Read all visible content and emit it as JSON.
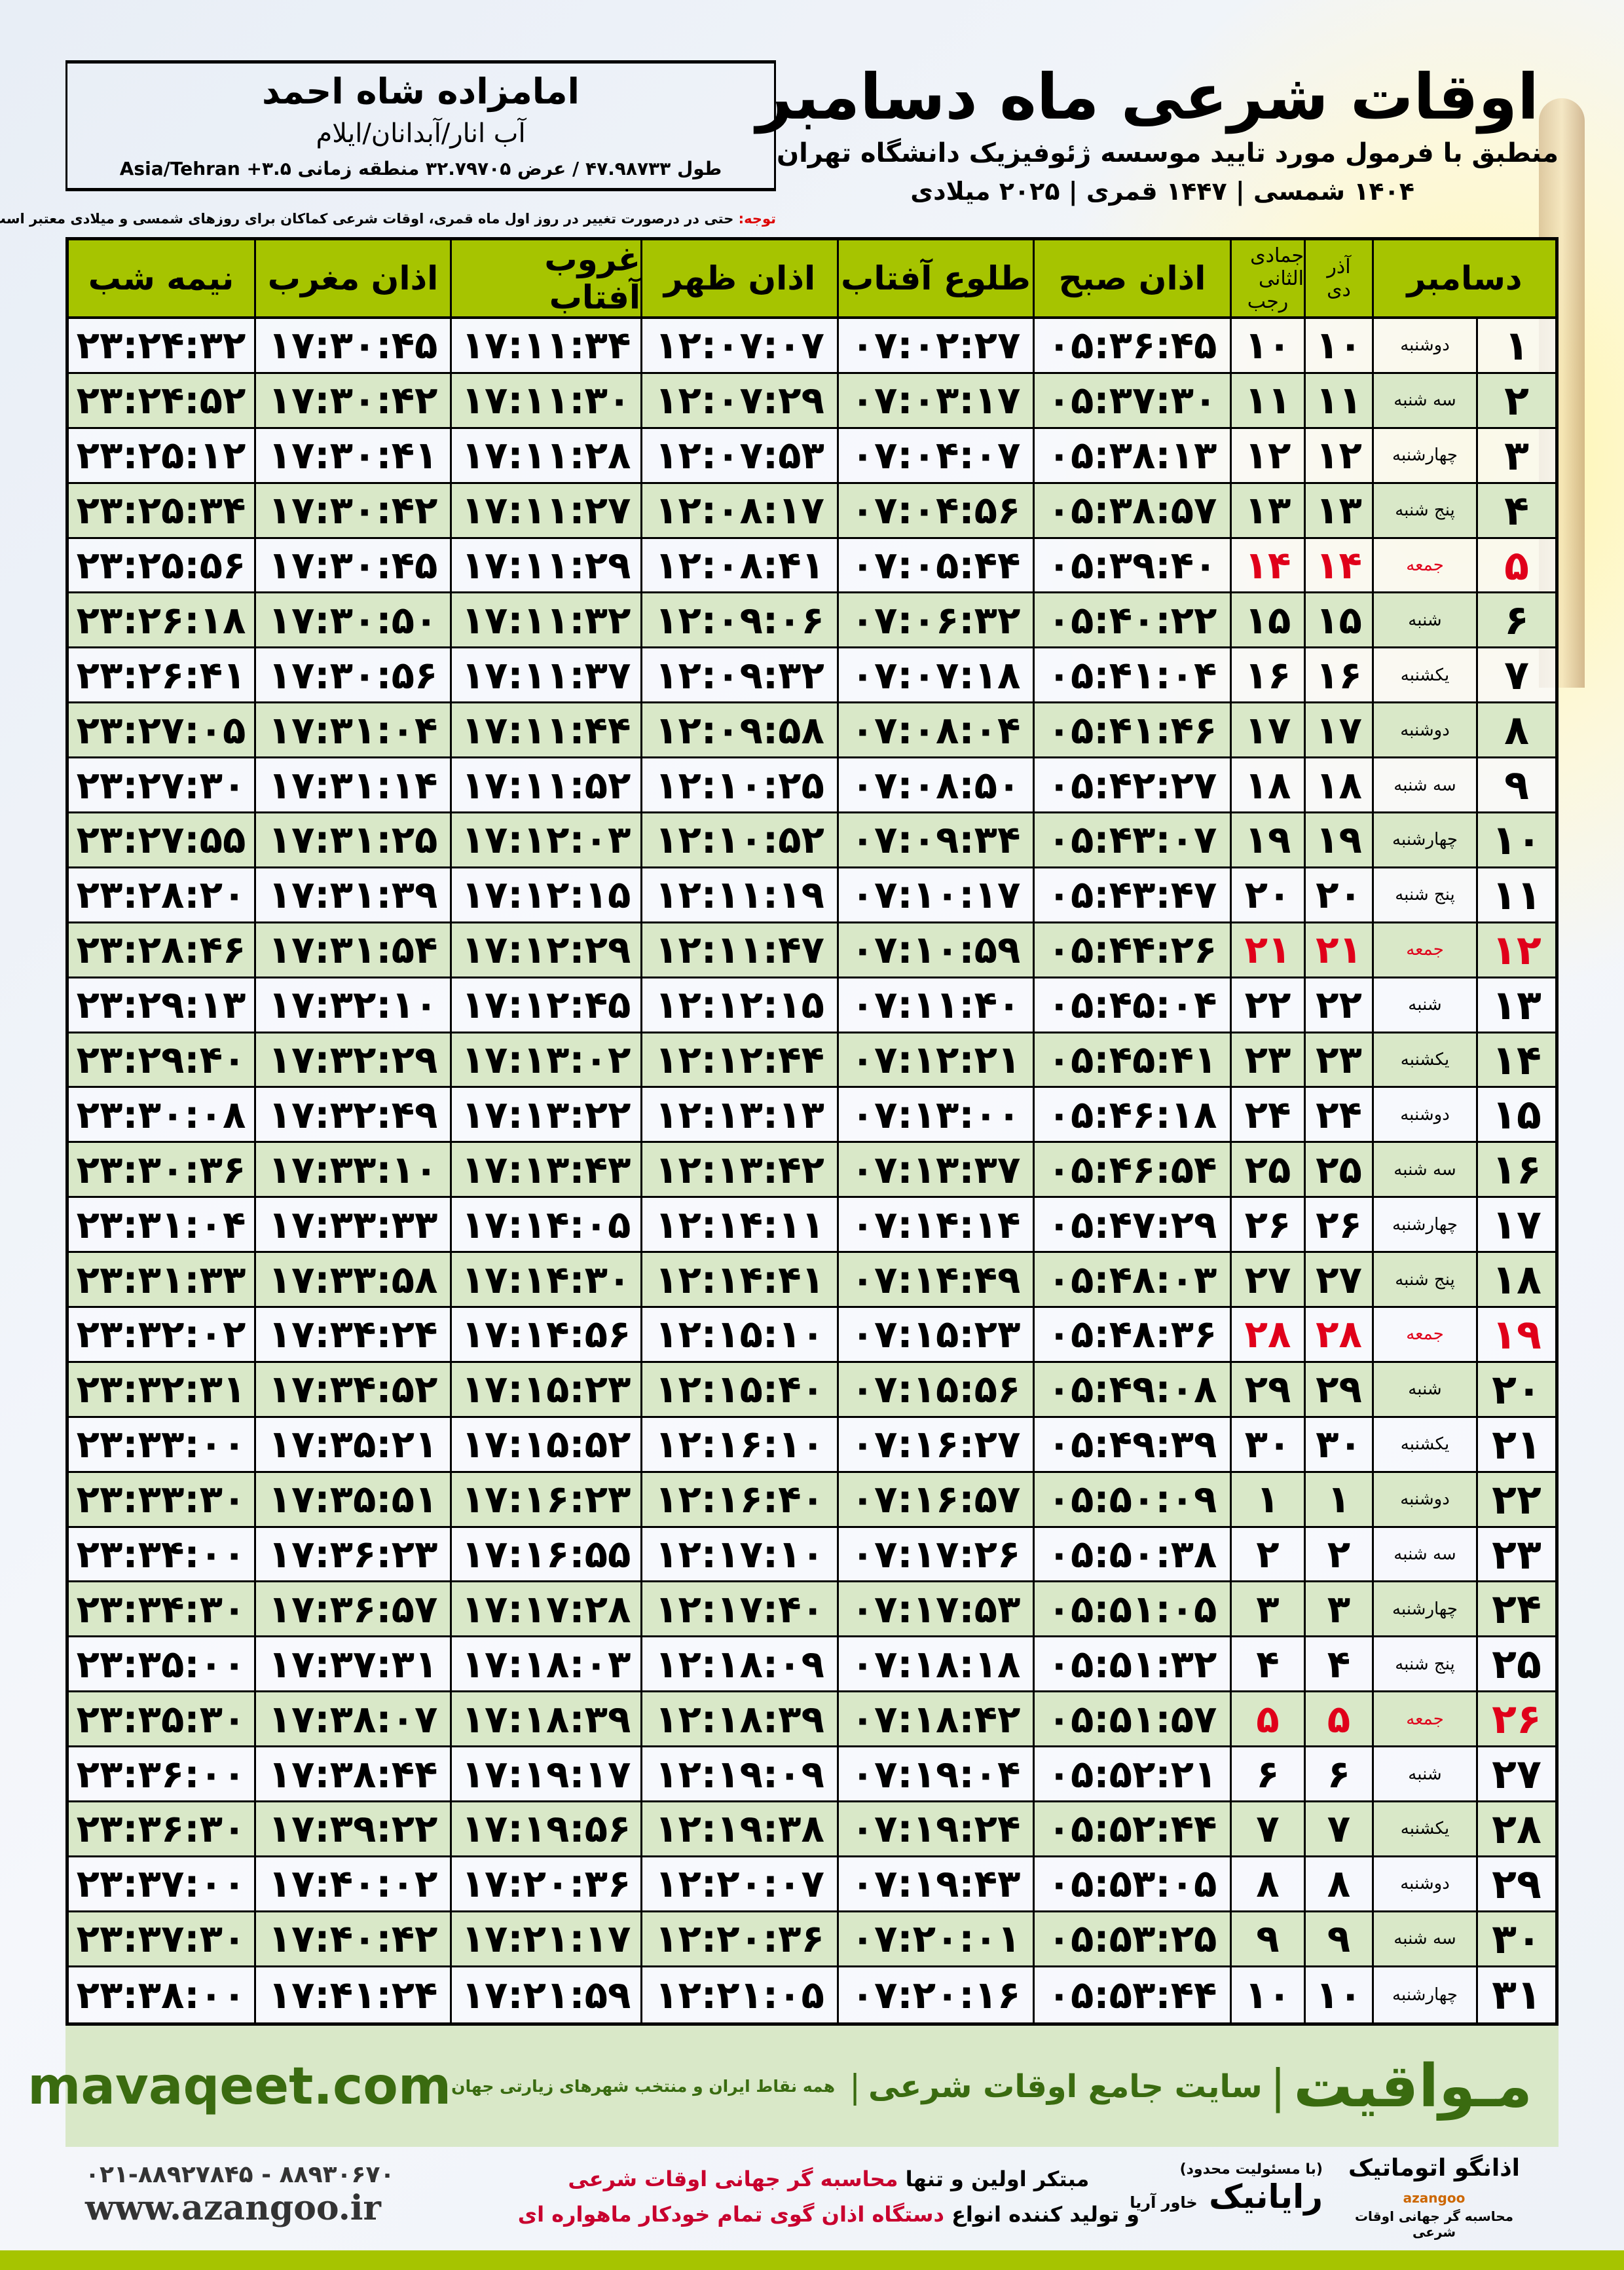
{
  "location": {
    "name": "امامزاده شاه احمد",
    "place": "آب انار/آبدانان/ایلام",
    "coords": "طول ۴۷.۹۸۷۳۳ / عرض ۳۲.۷۹۷۰۵ منطقه زمانی Asia/Tehran +۳.۵"
  },
  "header": {
    "title": "اوقات شرعی ماه دسامبر",
    "subtitle": "منطبق با فرمول مورد تایید موسسه ژئوفیزیک دانشگاه تهران",
    "dates": "۱۴۰۴ شمسی | ۱۴۴۷ قمری | ۲۰۲۵ میلادی"
  },
  "note": {
    "label": "توجه:",
    "text": " حتی در درصورت تغییر در روز اول ماه قمری، اوقات شرعی کماکان برای روزهای شمسی و میلادی معتبر است."
  },
  "columns": {
    "month": "دسامبر",
    "shamsi_top": "آذر",
    "shamsi_bottom": "دی",
    "hijri_top": "جمادی الثانی",
    "hijri_bottom": "رجب",
    "sobh": "اذان صبح",
    "tolu": "طلوع آفتاب",
    "zohr": "اذان ظهر",
    "ghoroob": "غروب آفتاب",
    "maghreb": "اذان مغرب",
    "nime": "نیمه شب"
  },
  "colors": {
    "header_green": "#a6c400",
    "row_alt": "#d9e8c8",
    "friday_red": "#e0001a",
    "brand_green": "#3a6b10"
  },
  "rows": [
    [
      "۱",
      "دوشنبه",
      "۱۰",
      "۱۰",
      "۰۵:۳۶:۴۵",
      "۰۷:۰۲:۲۷",
      "۱۲:۰۷:۰۷",
      "۱۷:۱۱:۳۴",
      "۱۷:۳۰:۴۵",
      "۲۳:۲۴:۳۲",
      false
    ],
    [
      "۲",
      "سه شنبه",
      "۱۱",
      "۱۱",
      "۰۵:۳۷:۳۰",
      "۰۷:۰۳:۱۷",
      "۱۲:۰۷:۲۹",
      "۱۷:۱۱:۳۰",
      "۱۷:۳۰:۴۲",
      "۲۳:۲۴:۵۲",
      false
    ],
    [
      "۳",
      "چهارشنبه",
      "۱۲",
      "۱۲",
      "۰۵:۳۸:۱۳",
      "۰۷:۰۴:۰۷",
      "۱۲:۰۷:۵۳",
      "۱۷:۱۱:۲۸",
      "۱۷:۳۰:۴۱",
      "۲۳:۲۵:۱۲",
      false
    ],
    [
      "۴",
      "پنج شنبه",
      "۱۳",
      "۱۳",
      "۰۵:۳۸:۵۷",
      "۰۷:۰۴:۵۶",
      "۱۲:۰۸:۱۷",
      "۱۷:۱۱:۲۷",
      "۱۷:۳۰:۴۲",
      "۲۳:۲۵:۳۴",
      false
    ],
    [
      "۵",
      "جمعه",
      "۱۴",
      "۱۴",
      "۰۵:۳۹:۴۰",
      "۰۷:۰۵:۴۴",
      "۱۲:۰۸:۴۱",
      "۱۷:۱۱:۲۹",
      "۱۷:۳۰:۴۵",
      "۲۳:۲۵:۵۶",
      true
    ],
    [
      "۶",
      "شنبه",
      "۱۵",
      "۱۵",
      "۰۵:۴۰:۲۲",
      "۰۷:۰۶:۳۲",
      "۱۲:۰۹:۰۶",
      "۱۷:۱۱:۳۲",
      "۱۷:۳۰:۵۰",
      "۲۳:۲۶:۱۸",
      false
    ],
    [
      "۷",
      "یکشنبه",
      "۱۶",
      "۱۶",
      "۰۵:۴۱:۰۴",
      "۰۷:۰۷:۱۸",
      "۱۲:۰۹:۳۲",
      "۱۷:۱۱:۳۷",
      "۱۷:۳۰:۵۶",
      "۲۳:۲۶:۴۱",
      false
    ],
    [
      "۸",
      "دوشنبه",
      "۱۷",
      "۱۷",
      "۰۵:۴۱:۴۶",
      "۰۷:۰۸:۰۴",
      "۱۲:۰۹:۵۸",
      "۱۷:۱۱:۴۴",
      "۱۷:۳۱:۰۴",
      "۲۳:۲۷:۰۵",
      false
    ],
    [
      "۹",
      "سه شنبه",
      "۱۸",
      "۱۸",
      "۰۵:۴۲:۲۷",
      "۰۷:۰۸:۵۰",
      "۱۲:۱۰:۲۵",
      "۱۷:۱۱:۵۲",
      "۱۷:۳۱:۱۴",
      "۲۳:۲۷:۳۰",
      false
    ],
    [
      "۱۰",
      "چهارشنبه",
      "۱۹",
      "۱۹",
      "۰۵:۴۳:۰۷",
      "۰۷:۰۹:۳۴",
      "۱۲:۱۰:۵۲",
      "۱۷:۱۲:۰۳",
      "۱۷:۳۱:۲۵",
      "۲۳:۲۷:۵۵",
      false
    ],
    [
      "۱۱",
      "پنج شنبه",
      "۲۰",
      "۲۰",
      "۰۵:۴۳:۴۷",
      "۰۷:۱۰:۱۷",
      "۱۲:۱۱:۱۹",
      "۱۷:۱۲:۱۵",
      "۱۷:۳۱:۳۹",
      "۲۳:۲۸:۲۰",
      false
    ],
    [
      "۱۲",
      "جمعه",
      "۲۱",
      "۲۱",
      "۰۵:۴۴:۲۶",
      "۰۷:۱۰:۵۹",
      "۱۲:۱۱:۴۷",
      "۱۷:۱۲:۲۹",
      "۱۷:۳۱:۵۴",
      "۲۳:۲۸:۴۶",
      true
    ],
    [
      "۱۳",
      "شنبه",
      "۲۲",
      "۲۲",
      "۰۵:۴۵:۰۴",
      "۰۷:۱۱:۴۰",
      "۱۲:۱۲:۱۵",
      "۱۷:۱۲:۴۵",
      "۱۷:۳۲:۱۰",
      "۲۳:۲۹:۱۳",
      false
    ],
    [
      "۱۴",
      "یکشنبه",
      "۲۳",
      "۲۳",
      "۰۵:۴۵:۴۱",
      "۰۷:۱۲:۲۱",
      "۱۲:۱۲:۴۴",
      "۱۷:۱۳:۰۲",
      "۱۷:۳۲:۲۹",
      "۲۳:۲۹:۴۰",
      false
    ],
    [
      "۱۵",
      "دوشنبه",
      "۲۴",
      "۲۴",
      "۰۵:۴۶:۱۸",
      "۰۷:۱۳:۰۰",
      "۱۲:۱۳:۱۳",
      "۱۷:۱۳:۲۲",
      "۱۷:۳۲:۴۹",
      "۲۳:۳۰:۰۸",
      false
    ],
    [
      "۱۶",
      "سه شنبه",
      "۲۵",
      "۲۵",
      "۰۵:۴۶:۵۴",
      "۰۷:۱۳:۳۷",
      "۱۲:۱۳:۴۲",
      "۱۷:۱۳:۴۳",
      "۱۷:۳۳:۱۰",
      "۲۳:۳۰:۳۶",
      false
    ],
    [
      "۱۷",
      "چهارشنبه",
      "۲۶",
      "۲۶",
      "۰۵:۴۷:۲۹",
      "۰۷:۱۴:۱۴",
      "۱۲:۱۴:۱۱",
      "۱۷:۱۴:۰۵",
      "۱۷:۳۳:۳۳",
      "۲۳:۳۱:۰۴",
      false
    ],
    [
      "۱۸",
      "پنج شنبه",
      "۲۷",
      "۲۷",
      "۰۵:۴۸:۰۳",
      "۰۷:۱۴:۴۹",
      "۱۲:۱۴:۴۱",
      "۱۷:۱۴:۳۰",
      "۱۷:۳۳:۵۸",
      "۲۳:۳۱:۳۳",
      false
    ],
    [
      "۱۹",
      "جمعه",
      "۲۸",
      "۲۸",
      "۰۵:۴۸:۳۶",
      "۰۷:۱۵:۲۳",
      "۱۲:۱۵:۱۰",
      "۱۷:۱۴:۵۶",
      "۱۷:۳۴:۲۴",
      "۲۳:۳۲:۰۲",
      true
    ],
    [
      "۲۰",
      "شنبه",
      "۲۹",
      "۲۹",
      "۰۵:۴۹:۰۸",
      "۰۷:۱۵:۵۶",
      "۱۲:۱۵:۴۰",
      "۱۷:۱۵:۲۳",
      "۱۷:۳۴:۵۲",
      "۲۳:۳۲:۳۱",
      false
    ],
    [
      "۲۱",
      "یکشنبه",
      "۳۰",
      "۳۰",
      "۰۵:۴۹:۳۹",
      "۰۷:۱۶:۲۷",
      "۱۲:۱۶:۱۰",
      "۱۷:۱۵:۵۲",
      "۱۷:۳۵:۲۱",
      "۲۳:۳۳:۰۰",
      false
    ],
    [
      "۲۲",
      "دوشنبه",
      "۱",
      "۱",
      "۰۵:۵۰:۰۹",
      "۰۷:۱۶:۵۷",
      "۱۲:۱۶:۴۰",
      "۱۷:۱۶:۲۳",
      "۱۷:۳۵:۵۱",
      "۲۳:۳۳:۳۰",
      false
    ],
    [
      "۲۳",
      "سه شنبه",
      "۲",
      "۲",
      "۰۵:۵۰:۳۸",
      "۰۷:۱۷:۲۶",
      "۱۲:۱۷:۱۰",
      "۱۷:۱۶:۵۵",
      "۱۷:۳۶:۲۳",
      "۲۳:۳۴:۰۰",
      false
    ],
    [
      "۲۴",
      "چهارشنبه",
      "۳",
      "۳",
      "۰۵:۵۱:۰۵",
      "۰۷:۱۷:۵۳",
      "۱۲:۱۷:۴۰",
      "۱۷:۱۷:۲۸",
      "۱۷:۳۶:۵۷",
      "۲۳:۳۴:۳۰",
      false
    ],
    [
      "۲۵",
      "پنج شنبه",
      "۴",
      "۴",
      "۰۵:۵۱:۳۲",
      "۰۷:۱۸:۱۸",
      "۱۲:۱۸:۰۹",
      "۱۷:۱۸:۰۳",
      "۱۷:۳۷:۳۱",
      "۲۳:۳۵:۰۰",
      false
    ],
    [
      "۲۶",
      "جمعه",
      "۵",
      "۵",
      "۰۵:۵۱:۵۷",
      "۰۷:۱۸:۴۲",
      "۱۲:۱۸:۳۹",
      "۱۷:۱۸:۳۹",
      "۱۷:۳۸:۰۷",
      "۲۳:۳۵:۳۰",
      true
    ],
    [
      "۲۷",
      "شنبه",
      "۶",
      "۶",
      "۰۵:۵۲:۲۱",
      "۰۷:۱۹:۰۴",
      "۱۲:۱۹:۰۹",
      "۱۷:۱۹:۱۷",
      "۱۷:۳۸:۴۴",
      "۲۳:۳۶:۰۰",
      false
    ],
    [
      "۲۸",
      "یکشنبه",
      "۷",
      "۷",
      "۰۵:۵۲:۴۴",
      "۰۷:۱۹:۲۴",
      "۱۲:۱۹:۳۸",
      "۱۷:۱۹:۵۶",
      "۱۷:۳۹:۲۲",
      "۲۳:۳۶:۳۰",
      false
    ],
    [
      "۲۹",
      "دوشنبه",
      "۸",
      "۸",
      "۰۵:۵۳:۰۵",
      "۰۷:۱۹:۴۳",
      "۱۲:۲۰:۰۷",
      "۱۷:۲۰:۳۶",
      "۱۷:۴۰:۰۲",
      "۲۳:۳۷:۰۰",
      false
    ],
    [
      "۳۰",
      "سه شنبه",
      "۹",
      "۹",
      "۰۵:۵۳:۲۵",
      "۰۷:۲۰:۰۱",
      "۱۲:۲۰:۳۶",
      "۱۷:۲۱:۱۷",
      "۱۷:۴۰:۴۲",
      "۲۳:۳۷:۳۰",
      false
    ],
    [
      "۳۱",
      "چهارشنبه",
      "۱۰",
      "۱۰",
      "۰۵:۵۳:۴۴",
      "۰۷:۲۰:۱۶",
      "۱۲:۲۱:۰۵",
      "۱۷:۲۱:۵۹",
      "۱۷:۴۱:۲۴",
      "۲۳:۳۸:۰۰",
      false
    ]
  ],
  "footer": {
    "brand": "مـواقیت",
    "slogan": "سایت جامع اوقات شرعی",
    "tagline": "همه نقاط ایران و منتخب شهرهای زیارتی جهان",
    "site": "mavaqeet.com"
  },
  "ads": {
    "logo1": "اذانگو اتوماتیک",
    "logo1_en": "azangoo",
    "logo1_sub": "محاسبه گر جهانی اوقات شرعی",
    "logo2": "رایانیک",
    "logo2_sub": "خاور آریا",
    "logo2_note": "(با مسئولیت محدود)",
    "line1_a": "مبتکر اولین و تنها ",
    "line1_b": "محاسبه گر جهانی اوقات شرعی",
    "line2_a": "و تولید کننده انواع ",
    "line2_b": "دستگاه اذان گوی تمام خودکار ماهواره ای",
    "phone": "۰۲۱-۸۸۹۲۷۸۴۵ - ۸۸۹۳۰۶۷۰",
    "web": "www.azangoo.ir"
  }
}
